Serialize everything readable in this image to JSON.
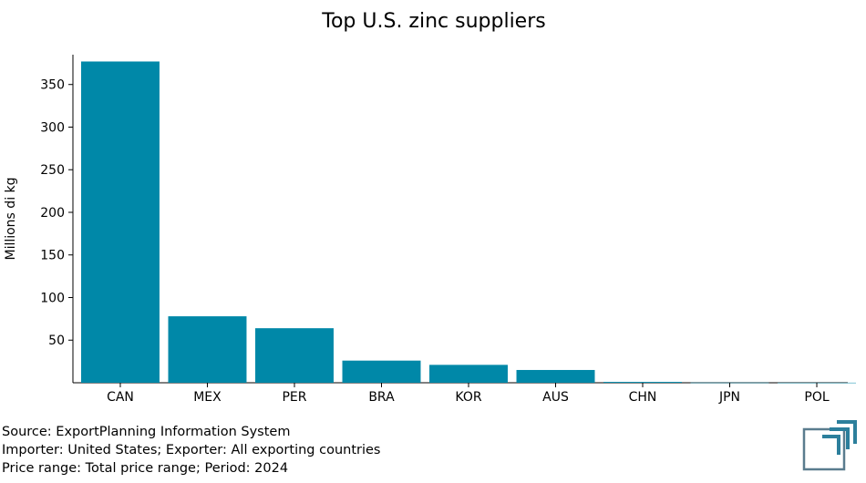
{
  "chart_data": {
    "type": "bar",
    "title": "Top U.S. zinc suppliers",
    "xlabel": "",
    "ylabel": "Millions di kg",
    "categories": [
      "CAN",
      "MEX",
      "PER",
      "BRA",
      "KOR",
      "AUS",
      "CHN",
      "JPN",
      "POL"
    ],
    "values": [
      377,
      78,
      64,
      26,
      21,
      15,
      1,
      0.2,
      0.1
    ],
    "ylim": [
      0,
      385
    ],
    "yticks": [
      50,
      100,
      150,
      200,
      250,
      300,
      350
    ],
    "grid": false,
    "bar_color": "#0088a8"
  },
  "footer": {
    "source": "Source: ExportPlanning Information System",
    "flow": "Importer: United States; Exporter: All exporting countries",
    "period": "Price range: Total price range; Period: 2024"
  },
  "logo": {
    "icon": "exportplanning-logo-icon",
    "color_primary": "#2c7f9c",
    "color_secondary": "#5a7c8e"
  }
}
